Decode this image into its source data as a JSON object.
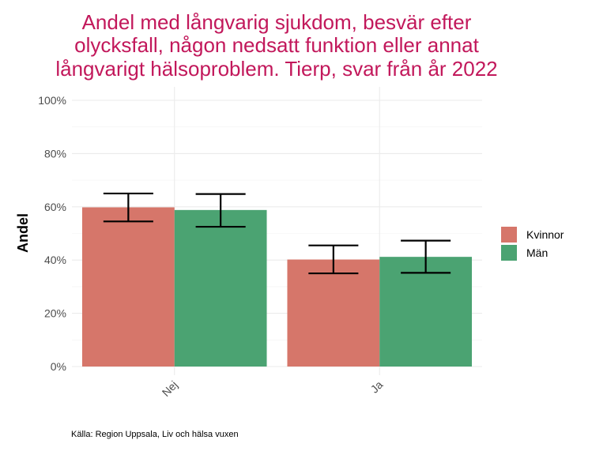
{
  "chart_data": {
    "type": "bar",
    "title_lines": [
      "Andel med långvarig sjukdom, besvär efter",
      "olycksfall, någon nedsatt funktion eller annat",
      "långvarigt hälsoproblem. Tierp, svar från år 2022"
    ],
    "ylabel": "Andel",
    "xlabel": "",
    "categories": [
      "Nej",
      "Ja"
    ],
    "ylim": [
      0,
      100
    ],
    "y_ticks": [
      "0%",
      "20%",
      "40%",
      "60%",
      "80%",
      "100%"
    ],
    "y_tick_values": [
      0,
      20,
      40,
      60,
      80,
      100
    ],
    "series": [
      {
        "name": "Kvinnor",
        "color": "#d6766a",
        "values": [
          59.8,
          40.2
        ],
        "error_low": [
          54.5,
          35.0
        ],
        "error_high": [
          65.0,
          45.5
        ]
      },
      {
        "name": "Män",
        "color": "#4ba372",
        "values": [
          58.8,
          41.2
        ],
        "error_low": [
          52.5,
          35.2
        ],
        "error_high": [
          64.8,
          47.3
        ]
      }
    ],
    "grid": true,
    "legend": "right",
    "title_color": "#c2185b",
    "caption": "Källa: Region Uppsala, Liv och hälsa vuxen"
  }
}
